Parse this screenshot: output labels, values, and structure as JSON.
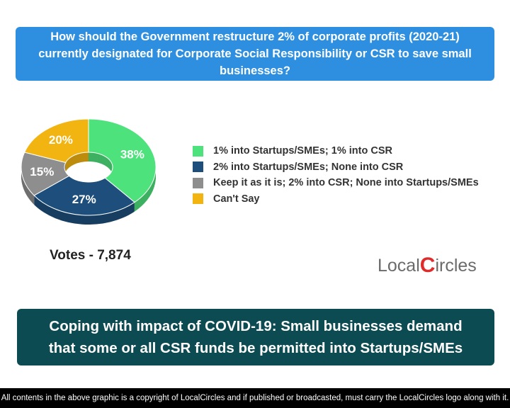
{
  "chart_data": {
    "type": "pie",
    "title": "How should the Government restructure 2% of corporate profits (2020-21) currently designated for Corporate Social Responsibility or CSR to save small businesses?",
    "categories": [
      "1% into Startups/SMEs; 1% into CSR",
      "2% into Startups/SMEs; None into CSR",
      "Keep it as it is; 2% into CSR; None into Startups/SMEs",
      "Can't Say"
    ],
    "values": [
      38,
      27,
      15,
      20
    ],
    "value_labels": [
      "38%",
      "27%",
      "15%",
      "20%"
    ],
    "colors": [
      "#4ee27c",
      "#1e4f7c",
      "#8e8e8e",
      "#f2b411"
    ],
    "donut": true,
    "votes": "Votes - 7,874"
  },
  "headline": "Coping with impact of COVID-19: Small businesses demand that some or all CSR funds be permitted into Startups/SMEs",
  "logo": {
    "left": "Local",
    "mark": "C",
    "right": "ircles"
  },
  "footer": "All contents in the above graphic is a copyright of LocalCircles and if published or broadcasted, must carry the LocalCircles logo along with it."
}
